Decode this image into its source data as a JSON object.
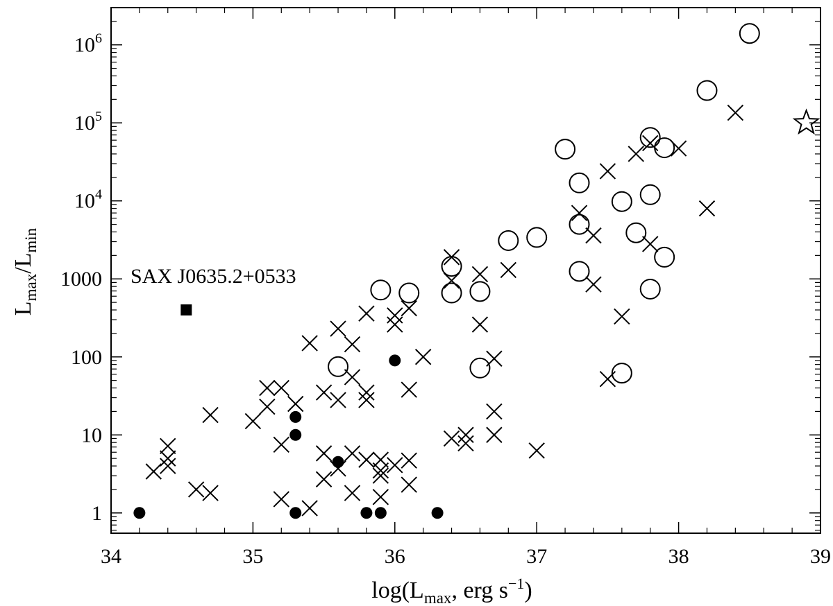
{
  "chart_data": {
    "type": "scatter",
    "x_axis": {
      "label_main": "log(L",
      "label_sub": "max",
      "label_rest": ", erg s",
      "label_sup": "−1",
      "label_close": ")",
      "range": [
        34,
        39
      ],
      "ticks": [
        34,
        35,
        36,
        37,
        38,
        39
      ],
      "tick_labels": [
        "34",
        "35",
        "36",
        "37",
        "38",
        "39"
      ],
      "minor_step": 0.2
    },
    "y_axis": {
      "label_L1": "L",
      "label_sub1": "max",
      "label_slash": "/L",
      "label_sub2": "min",
      "scale": "log",
      "range": [
        0.55,
        3000000
      ],
      "ticks": [
        1,
        10,
        100,
        1000,
        10000,
        100000,
        1000000
      ],
      "tick_labels": [
        {
          "base": "1",
          "exp": ""
        },
        {
          "base": "10",
          "exp": ""
        },
        {
          "base": "100",
          "exp": ""
        },
        {
          "base": "1000",
          "exp": ""
        },
        {
          "base": "10",
          "exp": "4"
        },
        {
          "base": "10",
          "exp": "5"
        },
        {
          "base": "10",
          "exp": "6"
        }
      ]
    },
    "grid": false,
    "annotation": {
      "text": "SAX J0635.2+0533",
      "x": 34.3,
      "y": 1000
    },
    "series": [
      {
        "marker": "open-circle",
        "points": [
          [
            38.5,
            1400000
          ],
          [
            38.2,
            260000
          ],
          [
            37.8,
            65000
          ],
          [
            37.9,
            48000
          ],
          [
            37.2,
            46000
          ],
          [
            37.3,
            17000
          ],
          [
            37.8,
            12000
          ],
          [
            37.6,
            9800
          ],
          [
            37.3,
            5000
          ],
          [
            37.7,
            3900
          ],
          [
            37.0,
            3400
          ],
          [
            36.8,
            3100
          ],
          [
            37.9,
            1900
          ],
          [
            36.4,
            1450
          ],
          [
            37.3,
            1250
          ],
          [
            35.9,
            720
          ],
          [
            37.8,
            740
          ],
          [
            36.1,
            660
          ],
          [
            36.4,
            660
          ],
          [
            36.6,
            690
          ],
          [
            35.6,
            75
          ],
          [
            36.6,
            72
          ],
          [
            37.6,
            62
          ]
        ]
      },
      {
        "marker": "cross",
        "points": [
          [
            38.4,
            135000
          ],
          [
            37.7,
            40000
          ],
          [
            37.8,
            55000
          ],
          [
            38.0,
            47000
          ],
          [
            37.5,
            24000
          ],
          [
            38.2,
            8000
          ],
          [
            37.3,
            7000
          ],
          [
            37.4,
            3600
          ],
          [
            37.8,
            2800
          ],
          [
            36.8,
            1300
          ],
          [
            36.4,
            1900
          ],
          [
            36.4,
            950
          ],
          [
            36.6,
            1150
          ],
          [
            37.4,
            850
          ],
          [
            36.1,
            420
          ],
          [
            36.0,
            340
          ],
          [
            36.0,
            260
          ],
          [
            35.8,
            360
          ],
          [
            35.6,
            230
          ],
          [
            37.6,
            330
          ],
          [
            36.6,
            260
          ],
          [
            35.7,
            145
          ],
          [
            35.4,
            150
          ],
          [
            36.2,
            100
          ],
          [
            36.7,
            95
          ],
          [
            35.7,
            55
          ],
          [
            37.5,
            52
          ],
          [
            35.1,
            40
          ],
          [
            35.2,
            40
          ],
          [
            36.1,
            38
          ],
          [
            35.5,
            35
          ],
          [
            35.8,
            35
          ],
          [
            35.8,
            28
          ],
          [
            35.6,
            28
          ],
          [
            35.3,
            25
          ],
          [
            35.1,
            23
          ],
          [
            36.7,
            20
          ],
          [
            34.7,
            18
          ],
          [
            35.0,
            15
          ],
          [
            36.7,
            10
          ],
          [
            36.5,
            10
          ],
          [
            36.4,
            9
          ],
          [
            36.5,
            7.8
          ],
          [
            35.2,
            7.5
          ],
          [
            34.4,
            7.2
          ],
          [
            37.0,
            6.3
          ],
          [
            35.5,
            5.8
          ],
          [
            35.7,
            5.8
          ],
          [
            34.4,
            5.0
          ],
          [
            35.8,
            4.8
          ],
          [
            35.9,
            4.8
          ],
          [
            36.1,
            4.7
          ],
          [
            34.4,
            4.0
          ],
          [
            36.0,
            4.1
          ],
          [
            35.6,
            3.7
          ],
          [
            35.9,
            3.5
          ],
          [
            34.3,
            3.4
          ],
          [
            35.9,
            3.0
          ],
          [
            35.5,
            2.7
          ],
          [
            36.1,
            2.3
          ],
          [
            34.6,
            2.0
          ],
          [
            34.7,
            1.8
          ],
          [
            35.7,
            1.8
          ],
          [
            35.9,
            1.6
          ],
          [
            35.2,
            1.5
          ],
          [
            35.4,
            1.15
          ]
        ]
      },
      {
        "marker": "filled-circle",
        "points": [
          [
            36.0,
            90
          ],
          [
            35.3,
            17
          ],
          [
            35.3,
            10
          ],
          [
            35.6,
            4.5
          ],
          [
            34.2,
            1.0
          ],
          [
            35.3,
            1.0
          ],
          [
            35.8,
            1.0
          ],
          [
            35.9,
            1.0
          ],
          [
            36.3,
            1.0
          ]
        ]
      },
      {
        "marker": "filled-square",
        "points": [
          [
            34.53,
            400
          ]
        ]
      },
      {
        "marker": "open-star",
        "points": [
          [
            38.9,
            100000
          ]
        ]
      }
    ]
  }
}
